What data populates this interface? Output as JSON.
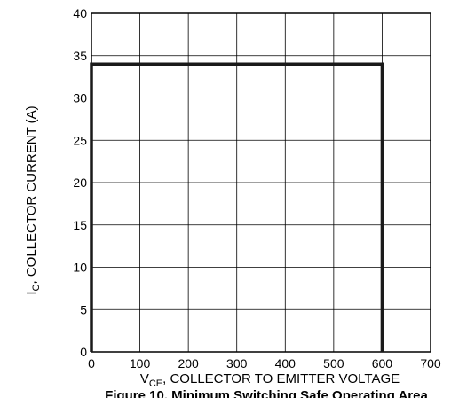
{
  "chart_data": {
    "type": "line",
    "title": "",
    "caption": "Figure 10. Minimum Switching Safe Operating Area",
    "xlabel": {
      "main": "V",
      "sub": "CE",
      "rest": ", COLLECTOR TO EMITTER VOLTAGE"
    },
    "ylabel": {
      "main": "I",
      "sub": "C",
      "rest": ", COLLECTOR  CURRENT (A)"
    },
    "xlim": [
      0,
      700
    ],
    "ylim": [
      0,
      40
    ],
    "xticks": [
      0,
      100,
      200,
      300,
      400,
      500,
      600,
      700
    ],
    "yticks": [
      0,
      5,
      10,
      15,
      20,
      25,
      30,
      35,
      40
    ],
    "grid": true,
    "series": [
      {
        "x": [
          0,
          0,
          600,
          600
        ],
        "y": [
          0,
          34,
          34,
          0
        ]
      }
    ],
    "line_color": "#1a1a1a",
    "grid_color": "#000000"
  }
}
